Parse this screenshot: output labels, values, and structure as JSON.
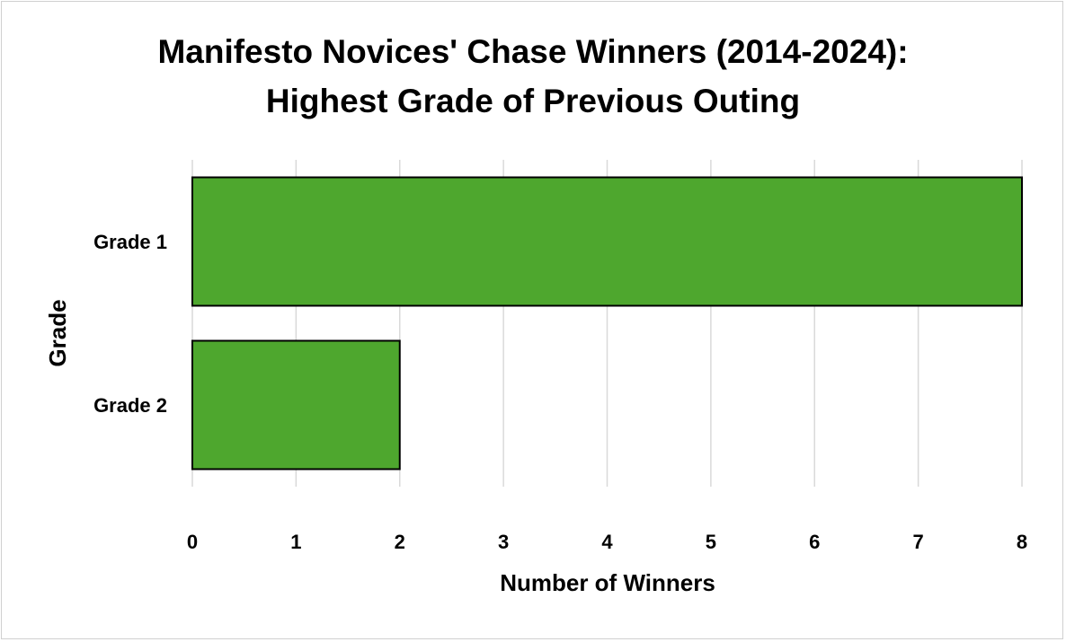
{
  "chart_data": {
    "type": "bar",
    "orientation": "horizontal",
    "title": [
      "Manifesto Novices' Chase Winners (2014-2024):",
      "Highest Grade of Previous Outing"
    ],
    "xlabel": "Number of Winners",
    "ylabel": "Grade",
    "categories": [
      "Grade 1",
      "Grade 2"
    ],
    "values": [
      8,
      2
    ],
    "xlim": [
      0,
      8
    ],
    "xticks": [
      0,
      1,
      2,
      3,
      4,
      5,
      6,
      7,
      8
    ],
    "grid": "vertical",
    "legend": "none",
    "colors": {
      "bar_fill": "#4ea72e",
      "bar_stroke": "#000000",
      "grid": "#d9d9d9"
    }
  }
}
